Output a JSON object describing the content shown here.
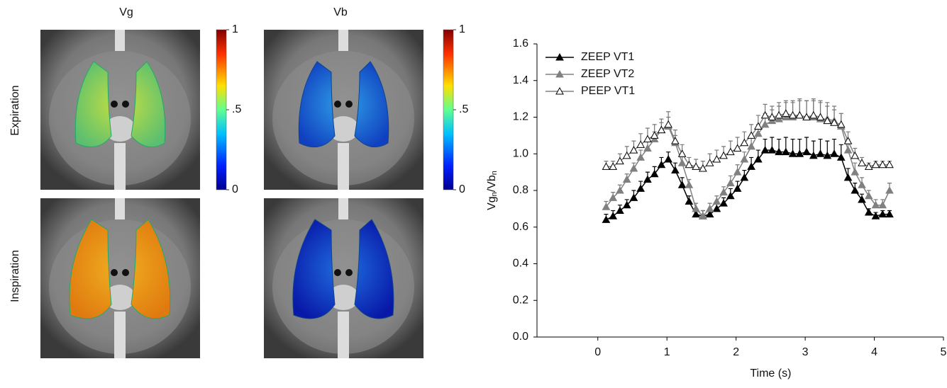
{
  "figure": {
    "column_titles": [
      "Vg",
      "Vb"
    ],
    "row_labels": [
      "Expiration",
      "Inspiration"
    ],
    "colorbars": [
      {
        "ticks": [
          {
            "value": 1,
            "label": "1"
          },
          {
            "value": 0.5,
            "label": ".5"
          },
          {
            "value": 0,
            "label": "0"
          }
        ]
      },
      {
        "ticks": [
          {
            "value": 1,
            "label": "1"
          },
          {
            "value": 0.5,
            "label": ".5"
          },
          {
            "value": 0,
            "label": "0"
          }
        ]
      }
    ]
  },
  "chart_data": {
    "type": "line",
    "xlabel": "Time (s)",
    "ylabel": [
      "Vg",
      "n",
      "/Vb",
      "n"
    ],
    "xlim": [
      -0.88,
      5
    ],
    "xticks": [
      0,
      1,
      2,
      3,
      4,
      5
    ],
    "ylim": [
      0,
      1.6
    ],
    "yticks": [
      {
        "value": 0,
        "label": "0.0"
      },
      {
        "value": 0.2,
        "label": "0.2"
      },
      {
        "value": 0.4,
        "label": "0.4"
      },
      {
        "value": 0.6,
        "label": "0.6"
      },
      {
        "value": 0.8,
        "label": "0.8"
      },
      {
        "value": 1,
        "label": "1.0"
      },
      {
        "value": 1.2,
        "label": "1.2"
      },
      {
        "value": 1.4,
        "label": "1.4"
      },
      {
        "value": 1.6,
        "label": "1.6"
      }
    ],
    "legend": "upper left",
    "x": [
      0.12,
      0.22,
      0.32,
      0.42,
      0.52,
      0.62,
      0.72,
      0.82,
      0.92,
      1.02,
      1.12,
      1.22,
      1.32,
      1.42,
      1.52,
      1.62,
      1.72,
      1.82,
      1.92,
      2.02,
      2.12,
      2.22,
      2.32,
      2.42,
      2.52,
      2.62,
      2.72,
      2.82,
      2.92,
      3.02,
      3.12,
      3.22,
      3.32,
      3.42,
      3.52,
      3.62,
      3.72,
      3.82,
      3.92,
      4.02,
      4.12,
      4.22
    ],
    "series": [
      {
        "name": "ZEEP VT1",
        "color": "#000000",
        "marker": "filled",
        "values": [
          0.64,
          0.66,
          0.69,
          0.72,
          0.76,
          0.81,
          0.86,
          0.89,
          0.94,
          0.97,
          0.91,
          0.83,
          0.74,
          0.67,
          0.66,
          0.67,
          0.7,
          0.73,
          0.77,
          0.81,
          0.87,
          0.93,
          0.97,
          1.02,
          1.02,
          1.01,
          1.01,
          1.0,
          1.0,
          1.01,
          0.99,
          1.0,
          0.99,
          1.0,
          0.98,
          0.87,
          0.8,
          0.75,
          0.68,
          0.66,
          0.67,
          0.67
        ],
        "errors": [
          0.03,
          0.03,
          0.03,
          0.03,
          0.04,
          0.04,
          0.04,
          0.04,
          0.04,
          0.04,
          0.04,
          0.04,
          0.03,
          0.03,
          0.03,
          0.03,
          0.03,
          0.03,
          0.04,
          0.04,
          0.04,
          0.05,
          0.05,
          0.06,
          0.07,
          0.07,
          0.08,
          0.08,
          0.08,
          0.08,
          0.08,
          0.08,
          0.08,
          0.08,
          0.07,
          0.05,
          0.04,
          0.03,
          0.02,
          0.02,
          0.02,
          0.02
        ]
      },
      {
        "name": "ZEEP VT2",
        "color": "#808080",
        "marker": "filled",
        "values": [
          0.71,
          0.76,
          0.8,
          0.86,
          0.92,
          0.98,
          1.03,
          1.08,
          1.13,
          1.15,
          1.06,
          0.95,
          0.83,
          0.7,
          0.66,
          0.7,
          0.74,
          0.79,
          0.84,
          0.9,
          0.97,
          1.04,
          1.11,
          1.16,
          1.18,
          1.19,
          1.2,
          1.2,
          1.21,
          1.2,
          1.2,
          1.19,
          1.19,
          1.18,
          1.15,
          1.02,
          0.9,
          0.83,
          0.77,
          0.72,
          0.72,
          0.8
        ],
        "errors": [
          0.03,
          0.03,
          0.03,
          0.03,
          0.03,
          0.04,
          0.04,
          0.04,
          0.04,
          0.05,
          0.04,
          0.04,
          0.03,
          0.03,
          0.03,
          0.03,
          0.03,
          0.03,
          0.04,
          0.04,
          0.04,
          0.05,
          0.05,
          0.06,
          0.06,
          0.07,
          0.08,
          0.08,
          0.09,
          0.09,
          0.09,
          0.09,
          0.09,
          0.08,
          0.07,
          0.06,
          0.05,
          0.04,
          0.03,
          0.03,
          0.03,
          0.04
        ]
      },
      {
        "name": "PEEP VT1",
        "color": "#808080",
        "marker": "open",
        "values": [
          0.93,
          0.93,
          0.96,
          0.99,
          1.02,
          1.05,
          1.08,
          1.1,
          1.13,
          1.16,
          1.07,
          1.0,
          0.94,
          0.93,
          0.92,
          0.95,
          0.97,
          0.99,
          1.01,
          1.03,
          1.06,
          1.1,
          1.15,
          1.21,
          1.2,
          1.21,
          1.22,
          1.21,
          1.21,
          1.2,
          1.21,
          1.2,
          1.18,
          1.17,
          1.16,
          1.07,
          0.99,
          0.95,
          0.93,
          0.94,
          0.94,
          0.94
        ],
        "errors": [
          0.03,
          0.03,
          0.04,
          0.05,
          0.05,
          0.06,
          0.06,
          0.06,
          0.06,
          0.07,
          0.06,
          0.05,
          0.04,
          0.04,
          0.04,
          0.05,
          0.05,
          0.05,
          0.06,
          0.06,
          0.06,
          0.06,
          0.06,
          0.06,
          0.06,
          0.07,
          0.07,
          0.08,
          0.08,
          0.09,
          0.09,
          0.09,
          0.08,
          0.07,
          0.06,
          0.05,
          0.04,
          0.03,
          0.02,
          0.02,
          0.02,
          0.02
        ]
      }
    ]
  }
}
